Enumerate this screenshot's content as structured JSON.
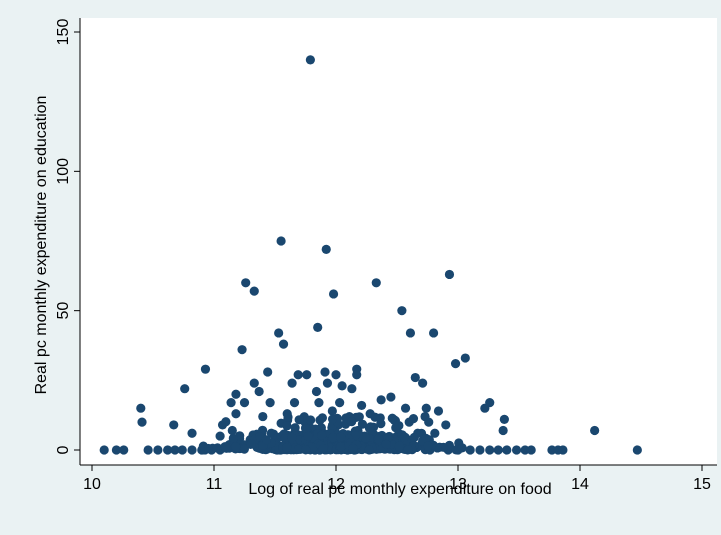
{
  "colors": {
    "background": "#eaf2f3",
    "plot_background": "#ffffff",
    "marker": "#1a476f",
    "axis": "#000000"
  },
  "chart_data": {
    "type": "scatter",
    "title": "",
    "xlabel": "Log of real pc monthly expenditure on food",
    "ylabel": "Real pc monthly expenditure on education",
    "xlim": [
      10,
      15
    ],
    "ylim": [
      0,
      150
    ],
    "x_ticks": [
      "10",
      "11",
      "12",
      "13",
      "14",
      "15"
    ],
    "y_ticks": [
      "0",
      "50",
      "100",
      "150"
    ],
    "grid": false,
    "legend": "none",
    "series": [
      {
        "points": [
          [
            11.79,
            140
          ],
          [
            11.55,
            75
          ],
          [
            11.92,
            72
          ],
          [
            12.93,
            63
          ],
          [
            11.26,
            60
          ],
          [
            12.33,
            60
          ],
          [
            11.33,
            57
          ],
          [
            11.98,
            56
          ],
          [
            12.54,
            50
          ],
          [
            11.85,
            44
          ],
          [
            12.8,
            42
          ],
          [
            11.53,
            42
          ],
          [
            12.61,
            42
          ],
          [
            11.57,
            38
          ],
          [
            11.23,
            36
          ],
          [
            13.06,
            33
          ],
          [
            12.98,
            31
          ],
          [
            10.93,
            29
          ],
          [
            12.17,
            29
          ],
          [
            11.44,
            28
          ],
          [
            11.69,
            27
          ],
          [
            11.76,
            27
          ],
          [
            11.91,
            28
          ],
          [
            12.0,
            27
          ],
          [
            12.17,
            27
          ],
          [
            12.65,
            26
          ],
          [
            12.71,
            24
          ],
          [
            11.33,
            24
          ],
          [
            11.64,
            24
          ],
          [
            11.93,
            24
          ],
          [
            10.76,
            22
          ],
          [
            11.18,
            20
          ],
          [
            11.37,
            21
          ],
          [
            11.84,
            21
          ],
          [
            12.05,
            23
          ],
          [
            12.13,
            22
          ],
          [
            12.37,
            18
          ],
          [
            12.45,
            19
          ],
          [
            13.26,
            17
          ],
          [
            13.22,
            15
          ],
          [
            12.74,
            15
          ],
          [
            12.84,
            14
          ],
          [
            10.4,
            15
          ],
          [
            10.41,
            10
          ],
          [
            11.25,
            17
          ],
          [
            11.14,
            17
          ],
          [
            11.46,
            17
          ],
          [
            11.66,
            17
          ],
          [
            11.86,
            17
          ],
          [
            12.03,
            17
          ],
          [
            12.21,
            16
          ],
          [
            12.57,
            15
          ],
          [
            12.73,
            12
          ],
          [
            13.38,
            11
          ],
          [
            13.37,
            7
          ],
          [
            14.12,
            7
          ],
          [
            12.28,
            13
          ],
          [
            11.97,
            14
          ],
          [
            11.6,
            13
          ],
          [
            11.4,
            12
          ],
          [
            11.18,
            13
          ],
          [
            12.6,
            10
          ],
          [
            12.76,
            10
          ],
          [
            12.9,
            9
          ],
          [
            11.07,
            9
          ],
          [
            10.67,
            9
          ],
          [
            12.49,
            8
          ],
          [
            11.15,
            7
          ],
          [
            10.82,
            6
          ],
          [
            11.05,
            5
          ],
          [
            12.67,
            6
          ],
          [
            12.81,
            6
          ],
          [
            10.1,
            0
          ],
          [
            10.2,
            0
          ],
          [
            10.26,
            0
          ],
          [
            10.46,
            0
          ],
          [
            10.54,
            0
          ],
          [
            10.62,
            0
          ],
          [
            10.68,
            0
          ],
          [
            10.74,
            0
          ],
          [
            10.82,
            0
          ],
          [
            10.9,
            0
          ],
          [
            10.98,
            0
          ],
          [
            11.05,
            0
          ],
          [
            13.1,
            0
          ],
          [
            13.18,
            0
          ],
          [
            13.26,
            0
          ],
          [
            13.33,
            0
          ],
          [
            13.4,
            0
          ],
          [
            13.48,
            0
          ],
          [
            13.55,
            0
          ],
          [
            13.6,
            0
          ],
          [
            13.77,
            0
          ],
          [
            13.82,
            0
          ],
          [
            13.86,
            0
          ],
          [
            14.47,
            0
          ],
          [
            12.92,
            0
          ],
          [
            13.0,
            0
          ],
          [
            12.85,
            1
          ],
          [
            12.77,
            0
          ],
          [
            12.7,
            2
          ],
          [
            11.95,
            4
          ],
          [
            11.72,
            5
          ],
          [
            11.5,
            3
          ],
          [
            12.25,
            4
          ],
          [
            12.4,
            3
          ],
          [
            12.1,
            5
          ],
          [
            11.3,
            2
          ],
          [
            12.55,
            2
          ],
          [
            11.88,
            8
          ],
          [
            12.02,
            9
          ],
          [
            12.18,
            7
          ],
          [
            11.66,
            6
          ],
          [
            11.47,
            6
          ]
        ]
      }
    ]
  }
}
